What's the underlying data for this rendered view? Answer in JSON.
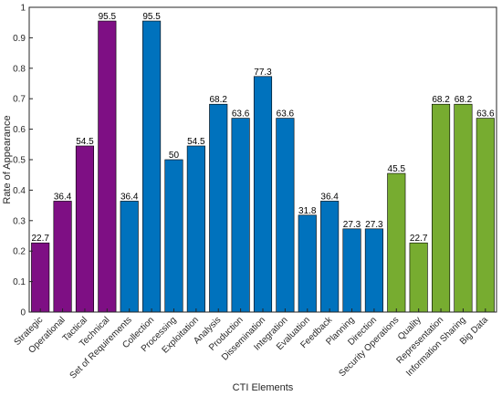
{
  "chart_data": {
    "type": "bar",
    "title": "",
    "xlabel": "CTI Elements",
    "ylabel": "Rate of Appearance",
    "ylim": [
      0,
      1
    ],
    "yticks": [
      0,
      0.1,
      0.2,
      0.3,
      0.4,
      0.5,
      0.6,
      0.7,
      0.8,
      0.9,
      1
    ],
    "ytick_labels": [
      "0",
      "0.1",
      "0.2",
      "0.3",
      "0.4",
      "0.5",
      "0.6",
      "0.7",
      "0.8",
      "0.9",
      "1"
    ],
    "grid": false,
    "categories": [
      "Strategic",
      "Operational",
      "Tactical",
      "Technical",
      "Set of Requirements",
      "Collection",
      "Processing",
      "Exploitation",
      "Analysis",
      "Production",
      "Dissemination",
      "Integration",
      "Evaluation",
      "Feedback",
      "Planning",
      "Direction",
      "Security Operations",
      "Quality",
      "Representation",
      "Information Sharing",
      "Big Data"
    ],
    "values": [
      0.227,
      0.364,
      0.545,
      0.955,
      0.364,
      0.955,
      0.5,
      0.545,
      0.682,
      0.636,
      0.773,
      0.636,
      0.318,
      0.364,
      0.273,
      0.273,
      0.455,
      0.227,
      0.682,
      0.682,
      0.636
    ],
    "value_labels": [
      "22.7",
      "36.4",
      "54.5",
      "95.5",
      "36.4",
      "95.5",
      "50",
      "54.5",
      "68.2",
      "63.6",
      "77.3",
      "63.6",
      "31.8",
      "36.4",
      "27.3",
      "27.3",
      "45.5",
      "22.7",
      "68.2",
      "68.2",
      "63.6"
    ],
    "bar_colors": [
      "#7e0f84",
      "#7e0f84",
      "#7e0f84",
      "#7e0f84",
      "#0072bd",
      "#0072bd",
      "#0072bd",
      "#0072bd",
      "#0072bd",
      "#0072bd",
      "#0072bd",
      "#0072bd",
      "#0072bd",
      "#0072bd",
      "#0072bd",
      "#0072bd",
      "#77ac30",
      "#77ac30",
      "#77ac30",
      "#77ac30",
      "#77ac30"
    ]
  }
}
